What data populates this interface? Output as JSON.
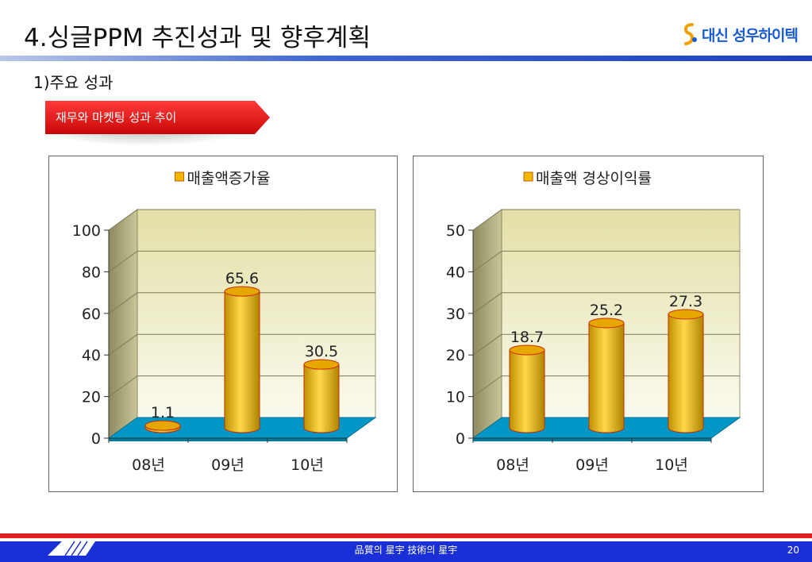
{
  "slide": {
    "title": "4.싱글PPM 추진성과 및 향후계획",
    "subtitle": "1)주요 성과",
    "ribbon_label": "재무와 마켓팅 성과 추이",
    "logo_text": "대신 성우하이텍",
    "footer_text": "品質의 星宇   技術의 星宇",
    "page_number": "20"
  },
  "colors": {
    "bar": "#f2b800",
    "bar_edge": "#cc2a00",
    "floor": "#0097c6",
    "wall": "#e9e6b4",
    "accent_blue": "#1a2fd6",
    "accent_red": "#e02020"
  },
  "chart_data": [
    {
      "type": "bar",
      "legend": "매출액증가율",
      "categories": [
        "08년",
        "09년",
        "10년"
      ],
      "values": [
        1.1,
        65.6,
        30.5
      ],
      "value_labels": [
        "1.1",
        "65.6",
        "30.5"
      ],
      "ylim": [
        0,
        100
      ],
      "yticks": [
        "0",
        "20",
        "40",
        "60",
        "80",
        "100"
      ],
      "grid": true,
      "legend_position": "top"
    },
    {
      "type": "bar",
      "legend": "매출액 경상이익률",
      "categories": [
        "08년",
        "09년",
        "10년"
      ],
      "values": [
        18.7,
        25.2,
        27.3
      ],
      "value_labels": [
        "18.7",
        "25.2",
        "27.3"
      ],
      "ylim": [
        0,
        50
      ],
      "yticks": [
        "0",
        "10",
        "20",
        "30",
        "40",
        "50"
      ],
      "grid": true,
      "legend_position": "top"
    }
  ]
}
